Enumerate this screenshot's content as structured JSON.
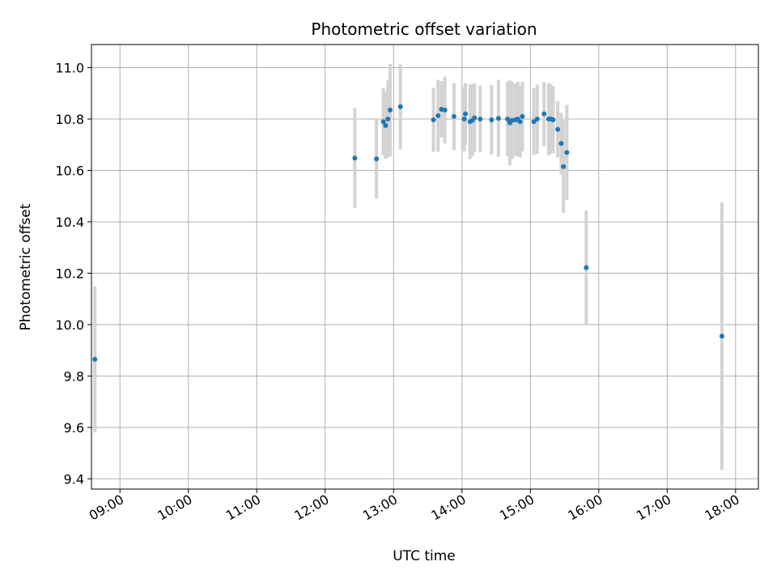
{
  "chart_data": {
    "type": "scatter",
    "title": "Photometric offset variation",
    "xlabel": "UTC time",
    "ylabel": "Photometric offset",
    "xlim": [
      "08:35",
      "18:20"
    ],
    "ylim": [
      9.36,
      11.09
    ],
    "x_ticks": [
      "09:00",
      "10:00",
      "11:00",
      "12:00",
      "13:00",
      "14:00",
      "15:00",
      "16:00",
      "17:00",
      "18:00"
    ],
    "y_ticks": [
      "9.4",
      "9.6",
      "9.8",
      "10.0",
      "10.2",
      "10.4",
      "10.6",
      "10.8",
      "11.0"
    ],
    "grid": true,
    "colors": {
      "point": "#1f77b4",
      "errorbar": "#d3d3d3",
      "grid": "#b0b0b0"
    },
    "points": [
      {
        "t": "08:38",
        "y": 9.865,
        "err": 0.285
      },
      {
        "t": "12:26",
        "y": 10.648,
        "err": 0.195
      },
      {
        "t": "12:45",
        "y": 10.645,
        "err": 0.155
      },
      {
        "t": "12:51",
        "y": 10.79,
        "err": 0.13
      },
      {
        "t": "12:53",
        "y": 10.775,
        "err": 0.13
      },
      {
        "t": "12:55",
        "y": 10.8,
        "err": 0.15
      },
      {
        "t": "12:57",
        "y": 10.835,
        "err": 0.18
      },
      {
        "t": "13:06",
        "y": 10.848,
        "err": 0.165
      },
      {
        "t": "13:35",
        "y": 10.797,
        "err": 0.125
      },
      {
        "t": "13:39",
        "y": 10.813,
        "err": 0.14
      },
      {
        "t": "13:42",
        "y": 10.838,
        "err": 0.11
      },
      {
        "t": "13:45",
        "y": 10.835,
        "err": 0.13
      },
      {
        "t": "13:53",
        "y": 10.81,
        "err": 0.13
      },
      {
        "t": "14:02",
        "y": 10.8,
        "err": 0.125
      },
      {
        "t": "14:03",
        "y": 10.82,
        "err": 0.12
      },
      {
        "t": "14:07",
        "y": 10.79,
        "err": 0.145
      },
      {
        "t": "14:09",
        "y": 10.795,
        "err": 0.14
      },
      {
        "t": "14:11",
        "y": 10.805,
        "err": 0.135
      },
      {
        "t": "14:16",
        "y": 10.8,
        "err": 0.13
      },
      {
        "t": "14:26",
        "y": 10.797,
        "err": 0.135
      },
      {
        "t": "14:32",
        "y": 10.803,
        "err": 0.15
      },
      {
        "t": "14:40",
        "y": 10.8,
        "err": 0.145
      },
      {
        "t": "14:42",
        "y": 10.785,
        "err": 0.165
      },
      {
        "t": "14:44",
        "y": 10.795,
        "err": 0.15
      },
      {
        "t": "14:47",
        "y": 10.797,
        "err": 0.14
      },
      {
        "t": "14:49",
        "y": 10.8,
        "err": 0.145
      },
      {
        "t": "14:51",
        "y": 10.79,
        "err": 0.14
      },
      {
        "t": "14:53",
        "y": 10.81,
        "err": 0.135
      },
      {
        "t": "15:03",
        "y": 10.79,
        "err": 0.13
      },
      {
        "t": "15:06",
        "y": 10.8,
        "err": 0.135
      },
      {
        "t": "15:12",
        "y": 10.82,
        "err": 0.125
      },
      {
        "t": "15:16",
        "y": 10.8,
        "err": 0.14
      },
      {
        "t": "15:18",
        "y": 10.8,
        "err": 0.135
      },
      {
        "t": "15:20",
        "y": 10.797,
        "err": 0.13
      },
      {
        "t": "15:24",
        "y": 10.76,
        "err": 0.11
      },
      {
        "t": "15:27",
        "y": 10.705,
        "err": 0.12
      },
      {
        "t": "15:29",
        "y": 10.615,
        "err": 0.18
      },
      {
        "t": "15:32",
        "y": 10.67,
        "err": 0.185
      },
      {
        "t": "15:49",
        "y": 10.222,
        "err": 0.222
      },
      {
        "t": "17:48",
        "y": 9.955,
        "err": 0.52
      }
    ]
  }
}
